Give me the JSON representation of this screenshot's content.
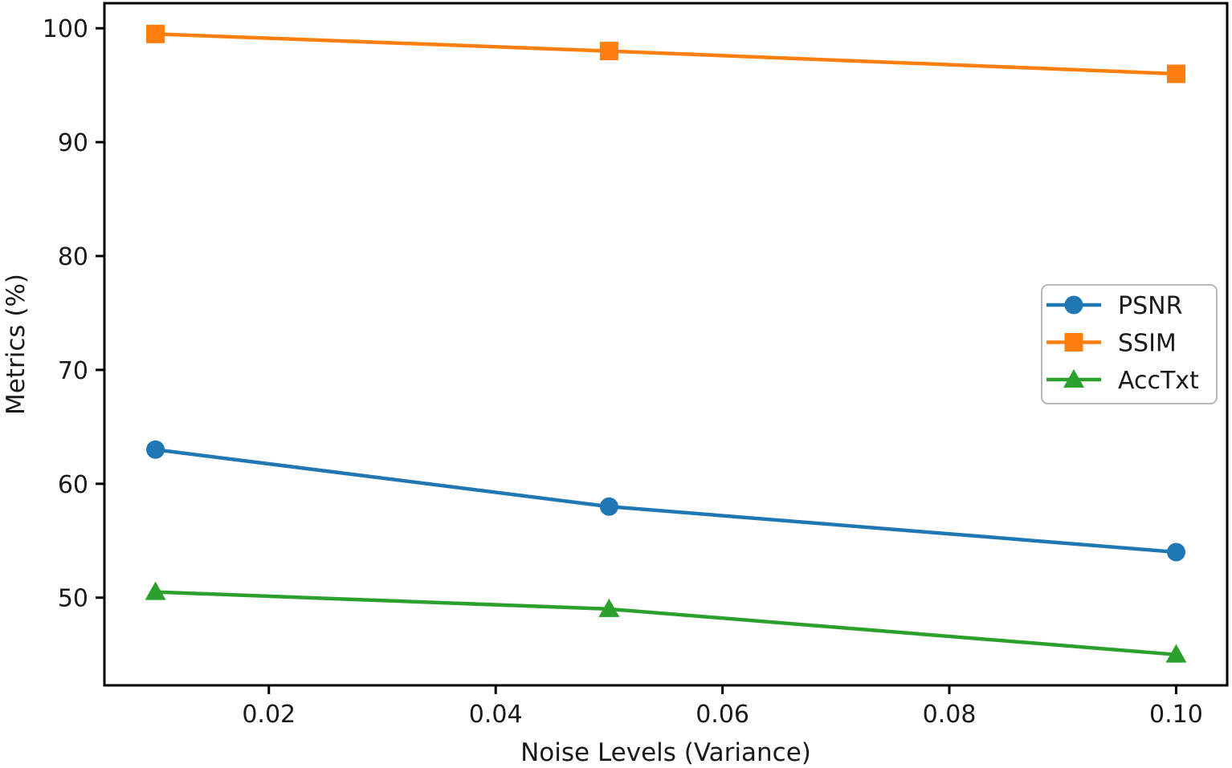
{
  "chart_data": {
    "type": "line",
    "title": "",
    "xlabel": "Noise Levels (Variance)",
    "ylabel": "Metrics (%)",
    "x": [
      0.01,
      0.05,
      0.1
    ],
    "series": [
      {
        "name": "PSNR",
        "marker": "circle",
        "color": "#1f77b4",
        "values": [
          63.0,
          58.0,
          54.0
        ]
      },
      {
        "name": "SSIM",
        "marker": "square",
        "color": "#ff7f0e",
        "values": [
          99.5,
          98.0,
          96.0
        ]
      },
      {
        "name": "AccTxt",
        "marker": "triangle",
        "color": "#2ca02c",
        "values": [
          50.5,
          49.0,
          45.0
        ]
      }
    ],
    "x_ticks": {
      "values": [
        0.02,
        0.04,
        0.06,
        0.08,
        0.1
      ],
      "labels": [
        "0.02",
        "0.04",
        "0.06",
        "0.08",
        "0.10"
      ]
    },
    "y_ticks": {
      "values": [
        50,
        60,
        70,
        80,
        90,
        100
      ],
      "labels": [
        "50",
        "60",
        "70",
        "80",
        "90",
        "100"
      ]
    },
    "xlim": [
      0.0055,
      0.1045
    ],
    "ylim": [
      42.3,
      102.2
    ],
    "grid": false,
    "legend": {
      "position": "center-right",
      "entries": [
        "PSNR",
        "SSIM",
        "AccTxt"
      ]
    },
    "axis_color": "#000000",
    "background": "#ffffff"
  }
}
